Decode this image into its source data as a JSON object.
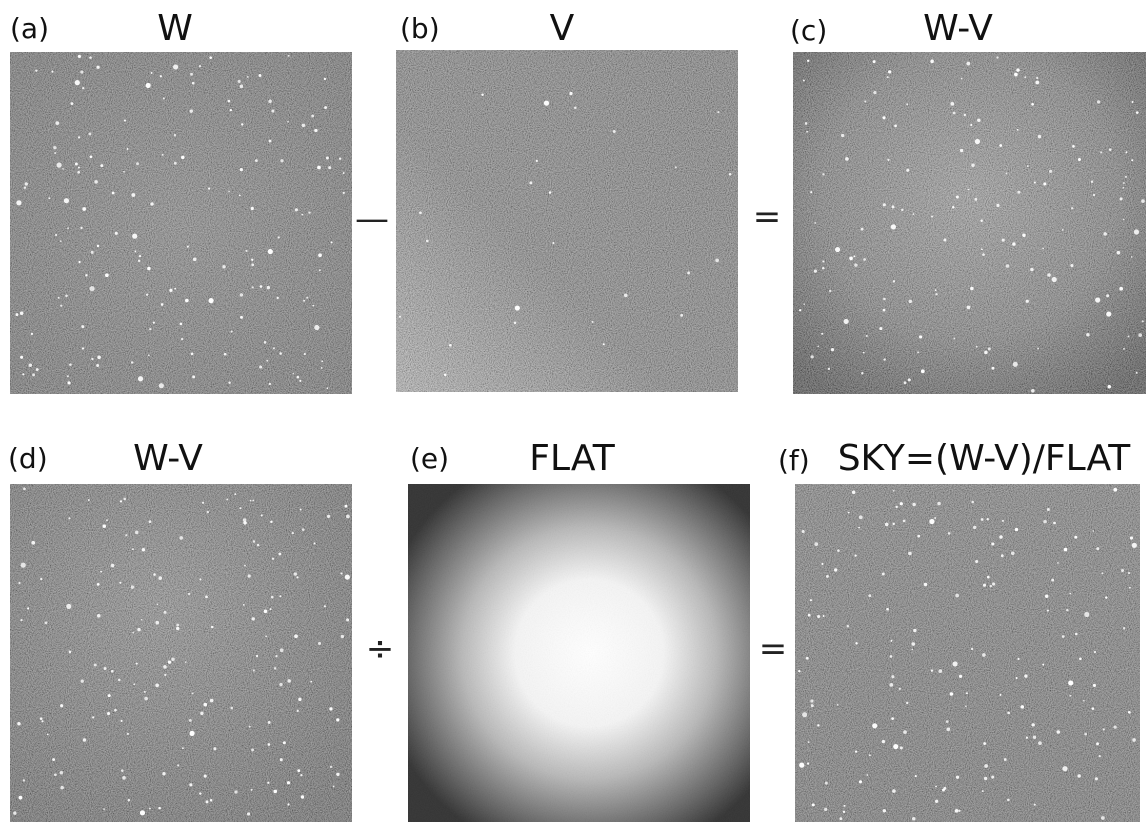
{
  "panels": [
    {
      "label": "(a)",
      "title": "W"
    },
    {
      "label": "(b)",
      "title": "V"
    },
    {
      "label": "(c)",
      "title": "W-V"
    },
    {
      "label": "(d)",
      "title": "W-V"
    },
    {
      "label": "(e)",
      "title": "FLAT"
    },
    {
      "label": "(f)",
      "title": "SKY=(W-V)/FLAT"
    }
  ],
  "operators": [
    "—",
    "=",
    "÷",
    "="
  ]
}
